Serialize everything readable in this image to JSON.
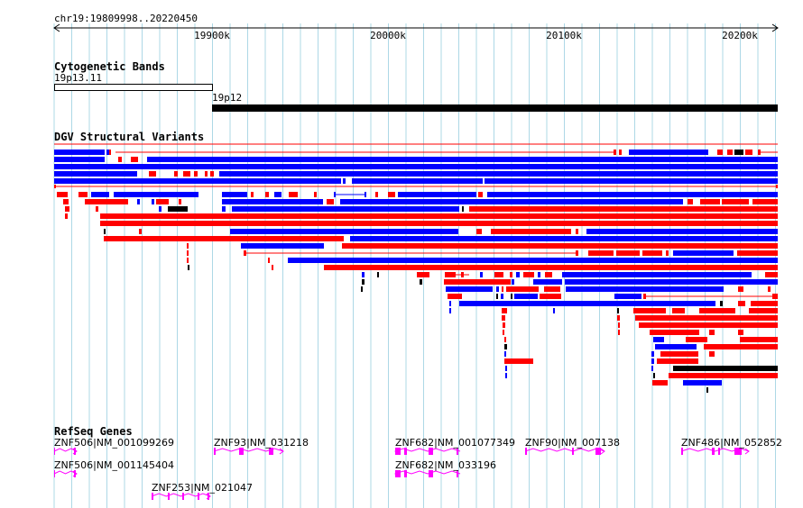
{
  "location": "chr19:19809998..20220450",
  "ruler": {
    "ticks": [
      {
        "label": "19900k",
        "pos": 19900000
      },
      {
        "label": "20000k",
        "pos": 20000000
      },
      {
        "label": "20100k",
        "pos": 20100000
      },
      {
        "label": "20200k",
        "pos": 20200000
      }
    ]
  },
  "cytoband_track": {
    "title": "Cytogenetic Bands",
    "bands": [
      {
        "name": "19p13.11",
        "start": 19809998,
        "end": 19900000,
        "stain": "gneg"
      },
      {
        "name": "19p12",
        "start": 19900000,
        "end": 20220450,
        "stain": "gvar"
      }
    ]
  },
  "dgv_track": {
    "title": "DGV Structural Variants"
  },
  "refseq_track": {
    "title": "RefSeq Genes",
    "genes": [
      {
        "label": "ZNF506|NM_001099269"
      },
      {
        "label": "ZNF506|NM_001145404"
      },
      {
        "label": "ZNF253|NM_021047"
      },
      {
        "label": "ZNF93|NM_031218"
      },
      {
        "label": "ZNF682|NM_001077349"
      },
      {
        "label": "ZNF682|NM_033196"
      },
      {
        "label": "ZNF90|NM_007138"
      },
      {
        "label": "ZNF486|NM_052852"
      }
    ]
  },
  "colors": {
    "gain": "#ff0000",
    "loss": "#0000ff",
    "complex": "#000000",
    "gene": "#ff00ff",
    "grid": "#add8e6"
  }
}
